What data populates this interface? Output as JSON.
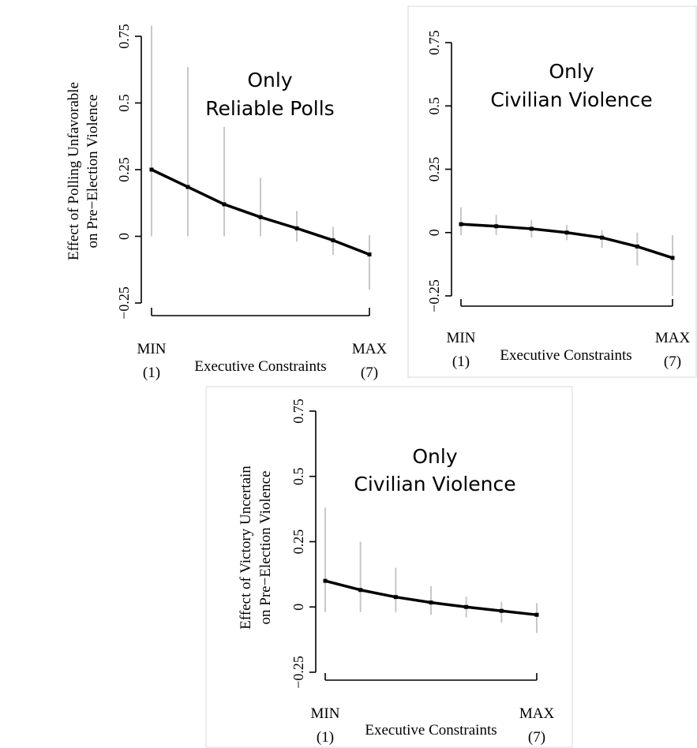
{
  "chart_data": [
    {
      "type": "line",
      "title": [
        "Only",
        "Reliable Polls"
      ],
      "ylabel": [
        "Effect of Polling Unfavorable",
        "on Pre−Election Violence"
      ],
      "xlabel": "Executive Constraints",
      "x_end_labels": {
        "min": [
          "MIN",
          "(1)"
        ],
        "max": [
          "MAX",
          "(7)"
        ]
      },
      "x": [
        1,
        2,
        3,
        4,
        5,
        6,
        7
      ],
      "ylim": [
        -0.25,
        0.75
      ],
      "yticks": [
        -0.25,
        0,
        0.25,
        0.5,
        0.75
      ],
      "ytick_labels": [
        "−0.25",
        "0",
        "0.25",
        "0.5",
        "0.75"
      ],
      "series": [
        {
          "values": [
            0.25,
            0.185,
            0.12,
            0.072,
            0.03,
            -0.015,
            -0.068
          ],
          "ci_lower": [
            0.0,
            0.0,
            0.0,
            0.0,
            -0.02,
            -0.07,
            -0.2
          ],
          "ci_upper": [
            0.79,
            0.635,
            0.41,
            0.22,
            0.095,
            0.035,
            0.005
          ]
        }
      ]
    },
    {
      "type": "line",
      "title": [
        "Only",
        "Civilian Violence"
      ],
      "ylabel": [],
      "xlabel": "Executive Constraints",
      "x_end_labels": {
        "min": [
          "MIN",
          "(1)"
        ],
        "max": [
          "MAX",
          "(7)"
        ]
      },
      "x": [
        1,
        2,
        3,
        4,
        5,
        6,
        7
      ],
      "ylim": [
        -0.25,
        0.75
      ],
      "yticks": [
        -0.25,
        0,
        0.25,
        0.5,
        0.75
      ],
      "ytick_labels": [
        "−0.25",
        "0",
        "0.25",
        "0.5",
        "0.75"
      ],
      "series": [
        {
          "values": [
            0.033,
            0.025,
            0.015,
            0.0,
            -0.02,
            -0.055,
            -0.1
          ],
          "ci_lower": [
            -0.01,
            -0.01,
            -0.02,
            -0.03,
            -0.06,
            -0.13,
            -0.25
          ],
          "ci_upper": [
            0.1,
            0.07,
            0.05,
            0.03,
            0.01,
            0.0,
            -0.01
          ]
        }
      ]
    },
    {
      "type": "line",
      "title": [
        "Only",
        "Civilian Violence"
      ],
      "ylabel": [
        "Effect of Victory Uncertain",
        "on Pre−Election Violence"
      ],
      "xlabel": "Executive Constraints",
      "x_end_labels": {
        "min": [
          "MIN",
          "(1)"
        ],
        "max": [
          "MAX",
          "(7)"
        ]
      },
      "x": [
        1,
        2,
        3,
        4,
        5,
        6,
        7
      ],
      "ylim": [
        -0.25,
        0.75
      ],
      "yticks": [
        -0.25,
        0,
        0.25,
        0.5,
        0.75
      ],
      "ytick_labels": [
        "−0.25",
        "0",
        "0.25",
        "0.5",
        "0.75"
      ],
      "series": [
        {
          "values": [
            0.1,
            0.065,
            0.038,
            0.017,
            0.0,
            -0.015,
            -0.03
          ],
          "ci_lower": [
            -0.02,
            -0.02,
            -0.02,
            -0.03,
            -0.04,
            -0.06,
            -0.1
          ],
          "ci_upper": [
            0.38,
            0.25,
            0.15,
            0.08,
            0.04,
            0.02,
            0.015
          ]
        }
      ]
    }
  ]
}
